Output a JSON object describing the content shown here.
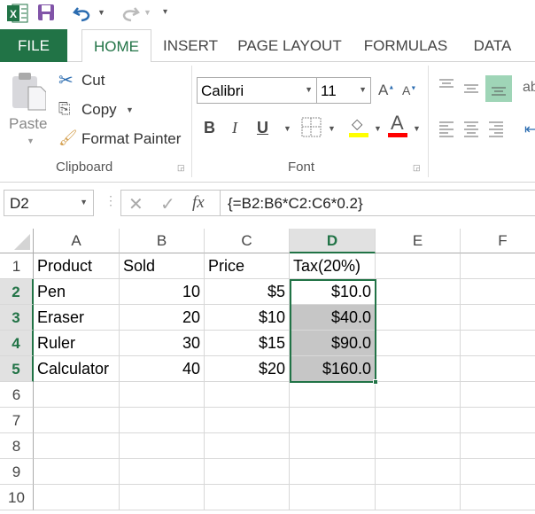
{
  "tabs": [
    "FILE",
    "HOME",
    "INSERT",
    "PAGE LAYOUT",
    "FORMULAS",
    "DATA"
  ],
  "clipboard": {
    "paste": "Paste",
    "cut": "Cut",
    "copy": "Copy",
    "format_painter": "Format Painter",
    "group": "Clipboard"
  },
  "font": {
    "name": "Calibri",
    "size": "11",
    "group": "Font",
    "bold": "B",
    "italic": "I",
    "underline": "U",
    "font_color_letter": "A",
    "fill_color": "#ffff00",
    "font_color": "#ff0000"
  },
  "formula_bar": {
    "name_box": "D2",
    "fx": "fx",
    "formula": "{=B2:B6*C2:C6*0.2}"
  },
  "columns": [
    "A",
    "B",
    "C",
    "D",
    "E",
    "F"
  ],
  "rows": [
    "1",
    "2",
    "3",
    "4",
    "5",
    "6",
    "7",
    "8",
    "9",
    "10"
  ],
  "cells": [
    [
      "Product",
      "Sold",
      "Price",
      "Tax(20%)"
    ],
    [
      "Pen",
      "10",
      "$5",
      "$10.0"
    ],
    [
      "Eraser",
      "20",
      "$10",
      "$40.0"
    ],
    [
      "Ruler",
      "30",
      "$15",
      "$90.0"
    ],
    [
      "Calculator",
      "40",
      "$20",
      "$160.0"
    ]
  ],
  "active_cell": "D2",
  "selection": "D2:D5",
  "accent": "#217346"
}
